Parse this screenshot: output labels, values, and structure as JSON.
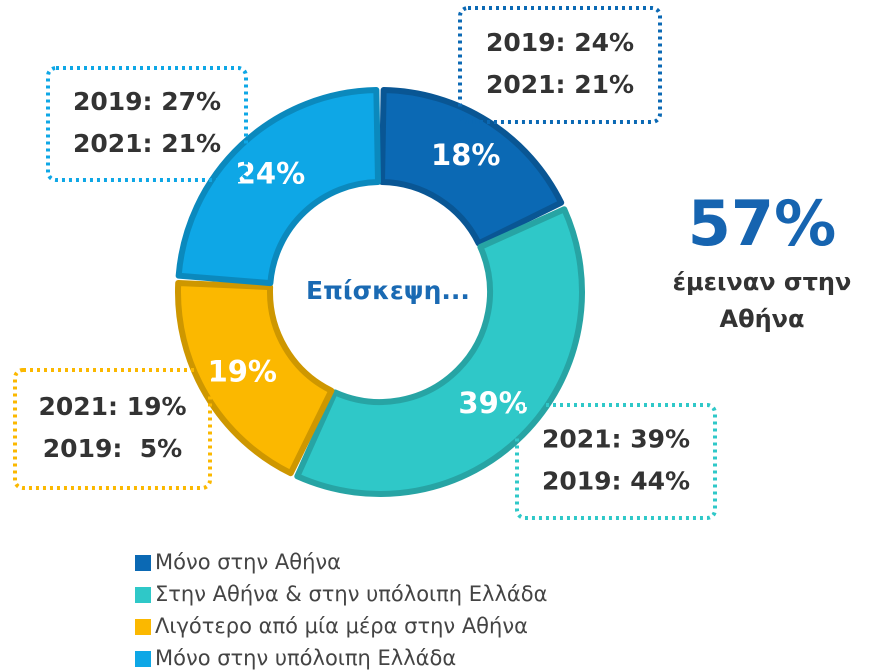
{
  "chart_data": {
    "type": "donut",
    "categories": [
      "Μόνο στην Αθήνα",
      "Στην Αθήνα & στην υπόλοιπη Ελλάδα",
      "Λιγότερο από μία μέρα στην Αθήνα",
      "Μόνο στην υπόλοιπη Ελλάδα"
    ],
    "values": [
      18,
      39,
      19,
      24
    ],
    "value_labels": [
      "18%",
      "39%",
      "19%",
      "24%"
    ],
    "colors": [
      "#0b69b4",
      "#2fc8c8",
      "#fbb800",
      "#0ea7e6"
    ],
    "center_label": "Επίσκεψη...",
    "callouts": [
      [
        "2019: 24%",
        "2021: 21%"
      ],
      [
        "2021: 39%",
        "2019: 44%"
      ],
      [
        "2021: 19%",
        "2019:  5%"
      ],
      [
        "2019: 27%",
        "2021: 21%"
      ]
    ],
    "side_value": "57%",
    "side_text": [
      "έμειναν στην",
      "Αθήνα"
    ]
  }
}
